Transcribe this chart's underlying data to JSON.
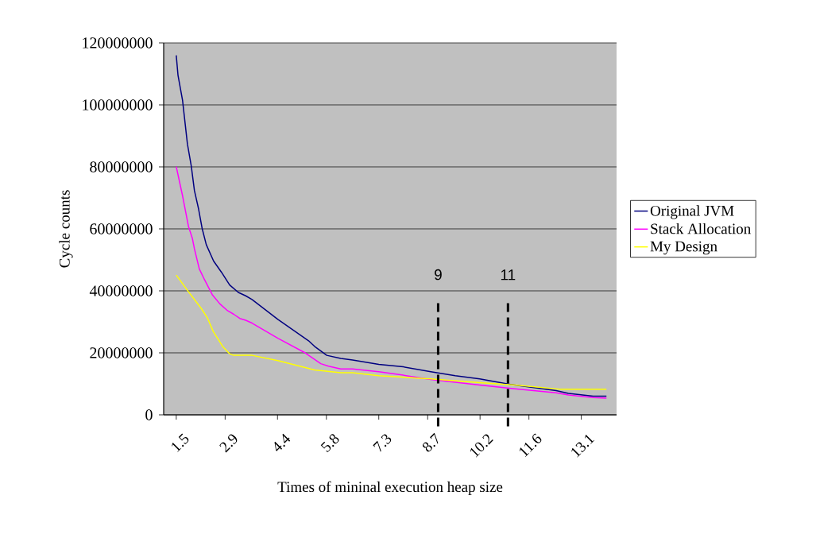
{
  "chart_data": {
    "type": "line",
    "xlabel": "Times of mininal execution heap size",
    "ylabel": "Cycle counts",
    "xlim": [
      1.14,
      14.11
    ],
    "xticks": [
      1.5,
      2.9,
      4.4,
      5.8,
      7.3,
      8.7,
      10.2,
      11.6,
      13.1
    ],
    "ylim": [
      0,
      120000000
    ],
    "yticks": [
      0,
      20000000,
      40000000,
      60000000,
      80000000,
      100000000,
      120000000
    ],
    "grid": "y",
    "legend": "right",
    "marker": "none",
    "line_style": "solid",
    "ref_lines": [
      {
        "axis": "x",
        "value": 9,
        "label": "9",
        "color": "#000000",
        "line_style": "dashed"
      },
      {
        "axis": "x",
        "value": 11,
        "label": "11",
        "color": "#000000",
        "line_style": "dashed"
      }
    ],
    "series": [
      {
        "name": "Original JVM",
        "color": "#000080",
        "x": [
          1.5,
          1.55,
          1.68,
          1.82,
          1.93,
          2.02,
          2.14,
          2.24,
          2.36,
          2.57,
          2.79,
          3.03,
          3.28,
          3.49,
          3.67,
          4.41,
          5.29,
          5.46,
          5.81,
          6.21,
          6.55,
          7.3,
          8.0,
          8.79,
          9.49,
          10.19,
          11.07,
          12.38,
          12.73,
          13.44,
          13.82
        ],
        "values": [
          116000000,
          109600000,
          101500000,
          87400000,
          80300000,
          72400000,
          66400000,
          60200000,
          54900000,
          49600000,
          46100000,
          41900000,
          39500000,
          38400000,
          37200000,
          30800000,
          23900000,
          22100000,
          19200000,
          18200000,
          17700000,
          16300000,
          15500000,
          13900000,
          12600000,
          11600000,
          9800000,
          7800000,
          6900000,
          6000000,
          6000000
        ]
      },
      {
        "name": "Stack Allocation",
        "color": "#ff00ff",
        "x": [
          1.5,
          1.68,
          1.85,
          1.96,
          2.02,
          2.16,
          2.31,
          2.53,
          2.75,
          2.97,
          3.14,
          3.32,
          3.49,
          3.67,
          4.41,
          5.16,
          5.64,
          5.86,
          6.21,
          6.55,
          7.3,
          8.0,
          8.79,
          10.19,
          11.2,
          12.38,
          12.73,
          13.44,
          13.82
        ],
        "values": [
          80100000,
          70700000,
          60800000,
          57000000,
          53600000,
          47100000,
          43600000,
          38800000,
          35800000,
          33600000,
          32500000,
          31100000,
          30500000,
          29600000,
          24700000,
          20200000,
          16500000,
          15700000,
          14800000,
          14800000,
          13900000,
          12800000,
          11400000,
          9600000,
          8400000,
          7100000,
          6400000,
          5600000,
          5400000
        ]
      },
      {
        "name": "My Design",
        "color": "#ffff00",
        "x": [
          1.5,
          1.85,
          2.22,
          2.4,
          2.56,
          2.84,
          3.03,
          3.14,
          3.67,
          4.41,
          5.46,
          6.21,
          6.55,
          7.3,
          8.79,
          10.19,
          11.2,
          12.47,
          13.82
        ],
        "values": [
          45100000,
          39700000,
          34300000,
          31100000,
          26900000,
          21900000,
          19700000,
          19200000,
          19200000,
          17500000,
          14500000,
          13600000,
          13600000,
          12600000,
          11600000,
          10400000,
          9600000,
          8300000,
          8300000
        ]
      }
    ]
  }
}
